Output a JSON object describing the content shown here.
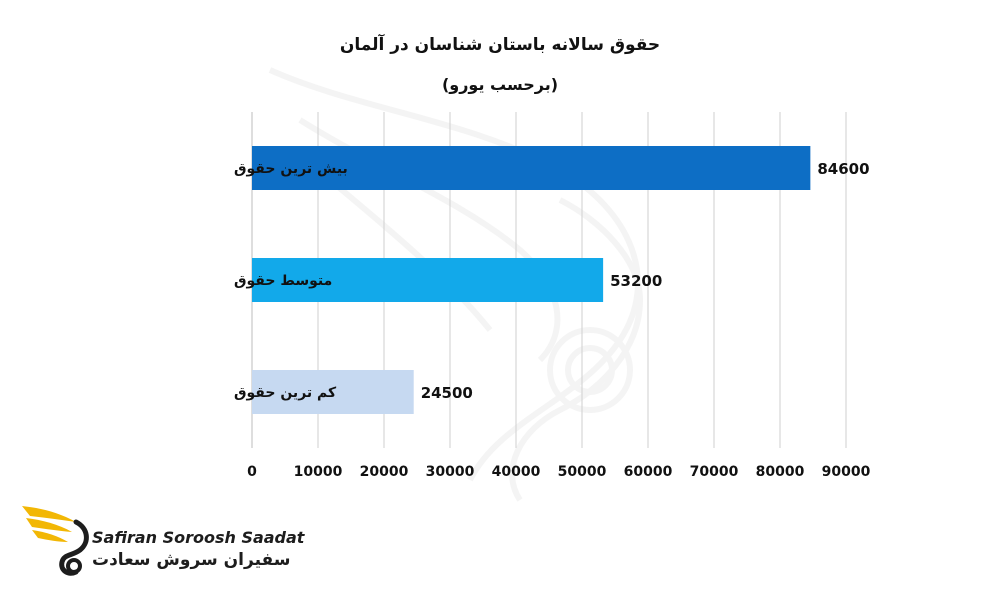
{
  "chart_data": {
    "type": "bar",
    "orientation": "horizontal",
    "title": "حقوق سالانه باستان شناسان در آلمان",
    "subtitle": "(برحسب یورو)",
    "categories": [
      "بیش ترین حقوق",
      "متوسط حقوق",
      "کم ترین حقوق"
    ],
    "values": [
      84600,
      53200,
      24500
    ],
    "data_labels": [
      "84600",
      "53200",
      "24500"
    ],
    "colors": [
      "#0d6ec5",
      "#12a9ea",
      "#c6d9f1"
    ],
    "xlim": [
      0,
      90000
    ],
    "xticks": [
      "0",
      "10000",
      "20000",
      "30000",
      "40000",
      "50000",
      "60000",
      "70000",
      "80000",
      "90000"
    ],
    "grid": true
  },
  "logo": {
    "text_en": "Safiran Soroosh Saadat",
    "text_fa": "سفیران سروش سعادت",
    "accent_color": "#f2b705"
  }
}
